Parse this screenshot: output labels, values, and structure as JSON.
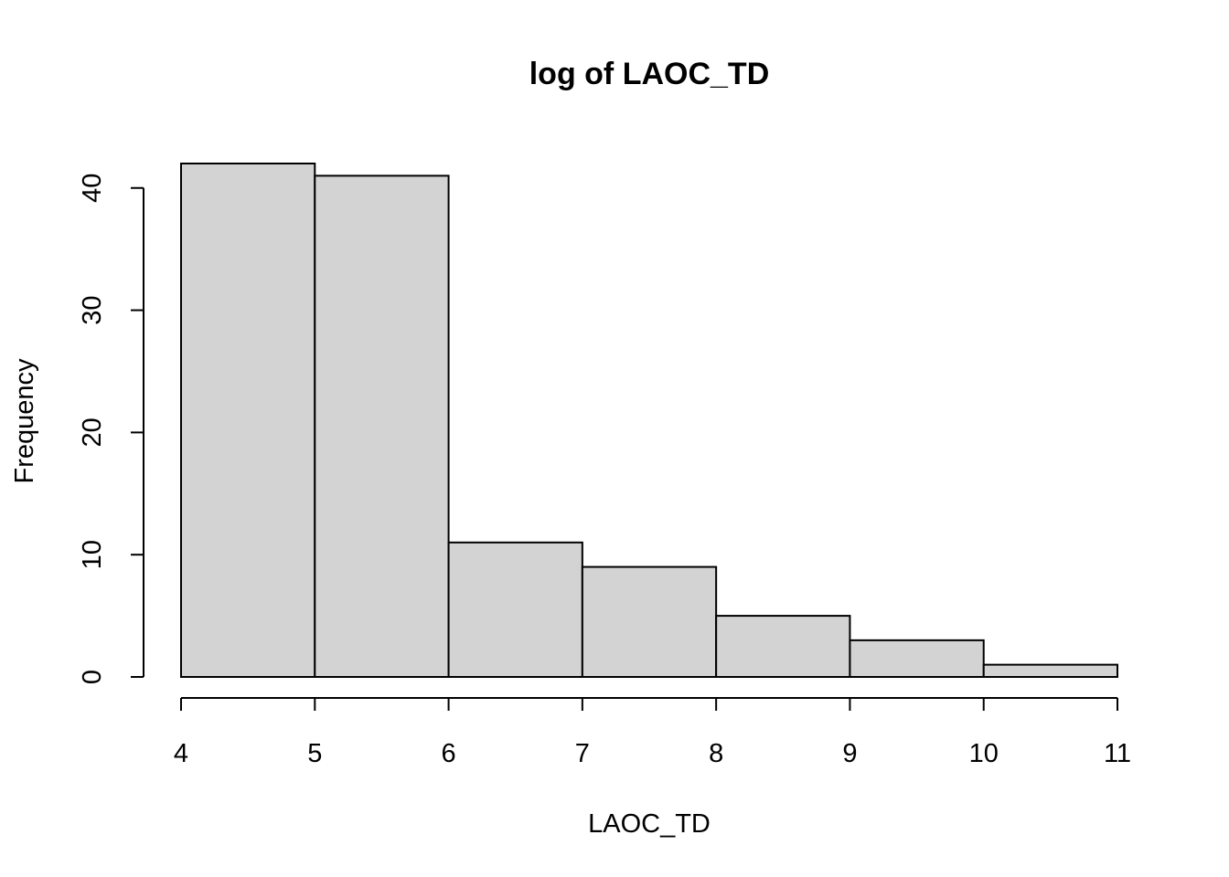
{
  "chart_data": {
    "type": "bar",
    "title": "log of LAOC_TD",
    "xlabel": "LAOC_TD",
    "ylabel": "Frequency",
    "bins": [
      {
        "x0": 4,
        "x1": 5,
        "count": 42
      },
      {
        "x0": 5,
        "x1": 6,
        "count": 41
      },
      {
        "x0": 6,
        "x1": 7,
        "count": 11
      },
      {
        "x0": 7,
        "x1": 8,
        "count": 9
      },
      {
        "x0": 8,
        "x1": 9,
        "count": 5
      },
      {
        "x0": 9,
        "x1": 10,
        "count": 3
      },
      {
        "x0": 10,
        "x1": 11,
        "count": 1
      }
    ],
    "xticks": [
      4,
      5,
      6,
      7,
      8,
      9,
      10,
      11
    ],
    "xtick_labels": [
      "4",
      "5",
      "6",
      "7",
      "8",
      "9",
      "10",
      "11"
    ],
    "yticks": [
      0,
      10,
      20,
      30,
      40
    ],
    "ytick_labels": [
      "0",
      "10",
      "20",
      "30",
      "40"
    ],
    "xlim": [
      4,
      11
    ],
    "ylim": [
      0,
      42
    ],
    "grid": false,
    "colors": {
      "bar_fill": "#d3d3d3",
      "bar_stroke": "#000000"
    }
  }
}
